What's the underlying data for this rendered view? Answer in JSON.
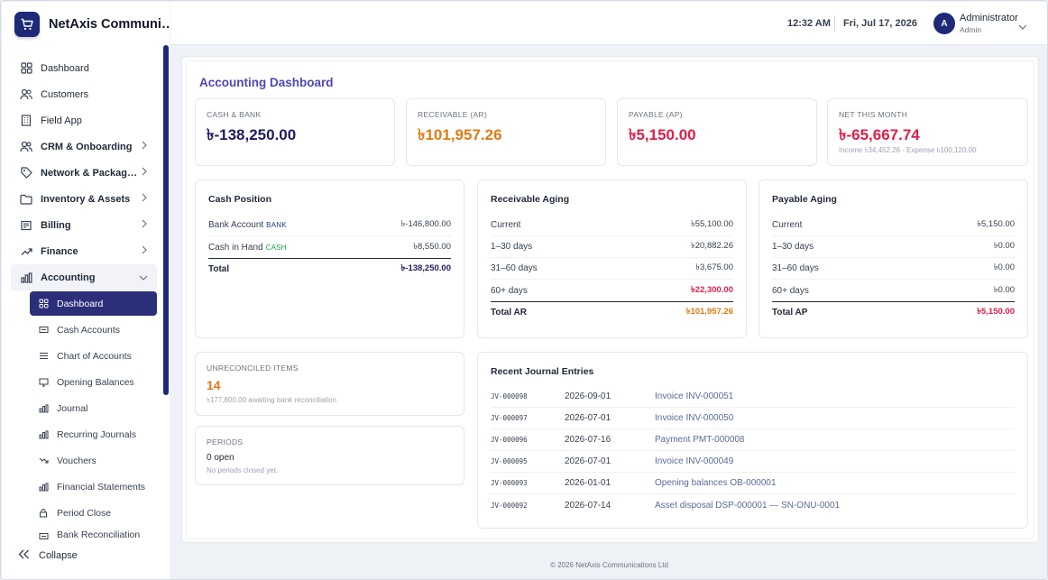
{
  "brand": {
    "name": "NetAxis Communi…"
  },
  "sidebar": {
    "items": [
      {
        "label": "Dashboard",
        "icon": "grid-icon"
      },
      {
        "label": "Customers",
        "icon": "users-icon"
      },
      {
        "label": "Field App",
        "icon": "building-icon"
      },
      {
        "label": "CRM & Onboarding",
        "icon": "users-icon"
      },
      {
        "label": "Network & Packag…",
        "icon": "tag-icon"
      },
      {
        "label": "Inventory & Assets",
        "icon": "folder-icon"
      },
      {
        "label": "Billing",
        "icon": "invoice-icon"
      },
      {
        "label": "Finance",
        "icon": "trend-icon"
      },
      {
        "label": "Accounting",
        "icon": "bar-chart-icon"
      }
    ],
    "sub_items": [
      {
        "label": "Dashboard",
        "icon": "grid-icon"
      },
      {
        "label": "Cash Accounts",
        "icon": "cash-icon"
      },
      {
        "label": "Chart of Accounts",
        "icon": "list-icon"
      },
      {
        "label": "Opening Balances",
        "icon": "monitor-icon"
      },
      {
        "label": "Journal",
        "icon": "bar-chart-icon"
      },
      {
        "label": "Recurring Journals",
        "icon": "bar-chart-icon"
      },
      {
        "label": "Vouchers",
        "icon": "trend-down-icon"
      },
      {
        "label": "Financial Statements",
        "icon": "bar-chart-icon"
      },
      {
        "label": "Period Close",
        "icon": "lock-icon"
      },
      {
        "label": "Bank Reconciliation",
        "icon": "cash-icon"
      }
    ],
    "collapse_label": "Collapse"
  },
  "topbar": {
    "time": "12:32 AM",
    "date": "Fri, Jul 17, 2026",
    "avatar_letter": "A",
    "user_name": "Administrator",
    "user_role": "Admin"
  },
  "page": {
    "title": "Accounting Dashboard"
  },
  "kpis": [
    {
      "label": "CASH & BANK",
      "value": "৳-138,250.00",
      "color": "#1e1b5e"
    },
    {
      "label": "RECEIVABLE (AR)",
      "value": "৳101,957.26",
      "color": "#e07a12"
    },
    {
      "label": "PAYABLE (AP)",
      "value": "৳5,150.00",
      "color": "#e11d48"
    },
    {
      "label": "NET THIS MONTH",
      "value": "৳-65,667.74",
      "color": "#e11d48",
      "sub": "Income ৳34,452.26 · Expense ৳100,120.00"
    }
  ],
  "cash_position": {
    "title": "Cash Position",
    "rows": [
      {
        "label": "Bank Account",
        "tag": "BANK",
        "amount": "৳-146,800.00"
      },
      {
        "label": "Cash in Hand",
        "tag": "CASH",
        "amount": "৳8,550.00"
      }
    ],
    "total_label": "Total",
    "total_amount": "৳-138,250.00"
  },
  "receivable_aging": {
    "title": "Receivable Aging",
    "rows": [
      {
        "label": "Current",
        "amount": "৳55,100.00"
      },
      {
        "label": "1–30 days",
        "amount": "৳20,882.26"
      },
      {
        "label": "31–60 days",
        "amount": "৳3,675.00"
      },
      {
        "label": "60+ days",
        "amount": "৳22,300.00"
      }
    ],
    "total_label": "Total AR",
    "total_amount": "৳101,957.26"
  },
  "payable_aging": {
    "title": "Payable Aging",
    "rows": [
      {
        "label": "Current",
        "amount": "৳5,150.00"
      },
      {
        "label": "1–30 days",
        "amount": "৳0.00"
      },
      {
        "label": "31–60 days",
        "amount": "৳0.00"
      },
      {
        "label": "60+ days",
        "amount": "৳0.00"
      }
    ],
    "total_label": "Total AP",
    "total_amount": "৳5,150.00"
  },
  "unreconciled": {
    "label": "UNRECONCILED ITEMS",
    "value": "14",
    "sub": "৳177,800.00 awaiting bank reconciliation"
  },
  "periods": {
    "label": "PERIODS",
    "value": "0 open",
    "sub": "No periods closed yet."
  },
  "journal": {
    "title": "Recent Journal Entries",
    "rows": [
      {
        "id": "JV-000098",
        "date": "2026-09-01",
        "desc": "Invoice INV-000051"
      },
      {
        "id": "JV-000097",
        "date": "2026-07-01",
        "desc": "Invoice INV-000050"
      },
      {
        "id": "JV-000096",
        "date": "2026-07-16",
        "desc": "Payment PMT-000008"
      },
      {
        "id": "JV-000095",
        "date": "2026-07-01",
        "desc": "Invoice INV-000049"
      },
      {
        "id": "JV-000093",
        "date": "2026-01-01",
        "desc": "Opening balances OB-000001"
      },
      {
        "id": "JV-000092",
        "date": "2026-07-14",
        "desc": "Asset disposal DSP-000001 — SN-ONU-0001"
      }
    ]
  },
  "footer": {
    "text": "© 2026 NetAxis Communications Ltd"
  }
}
